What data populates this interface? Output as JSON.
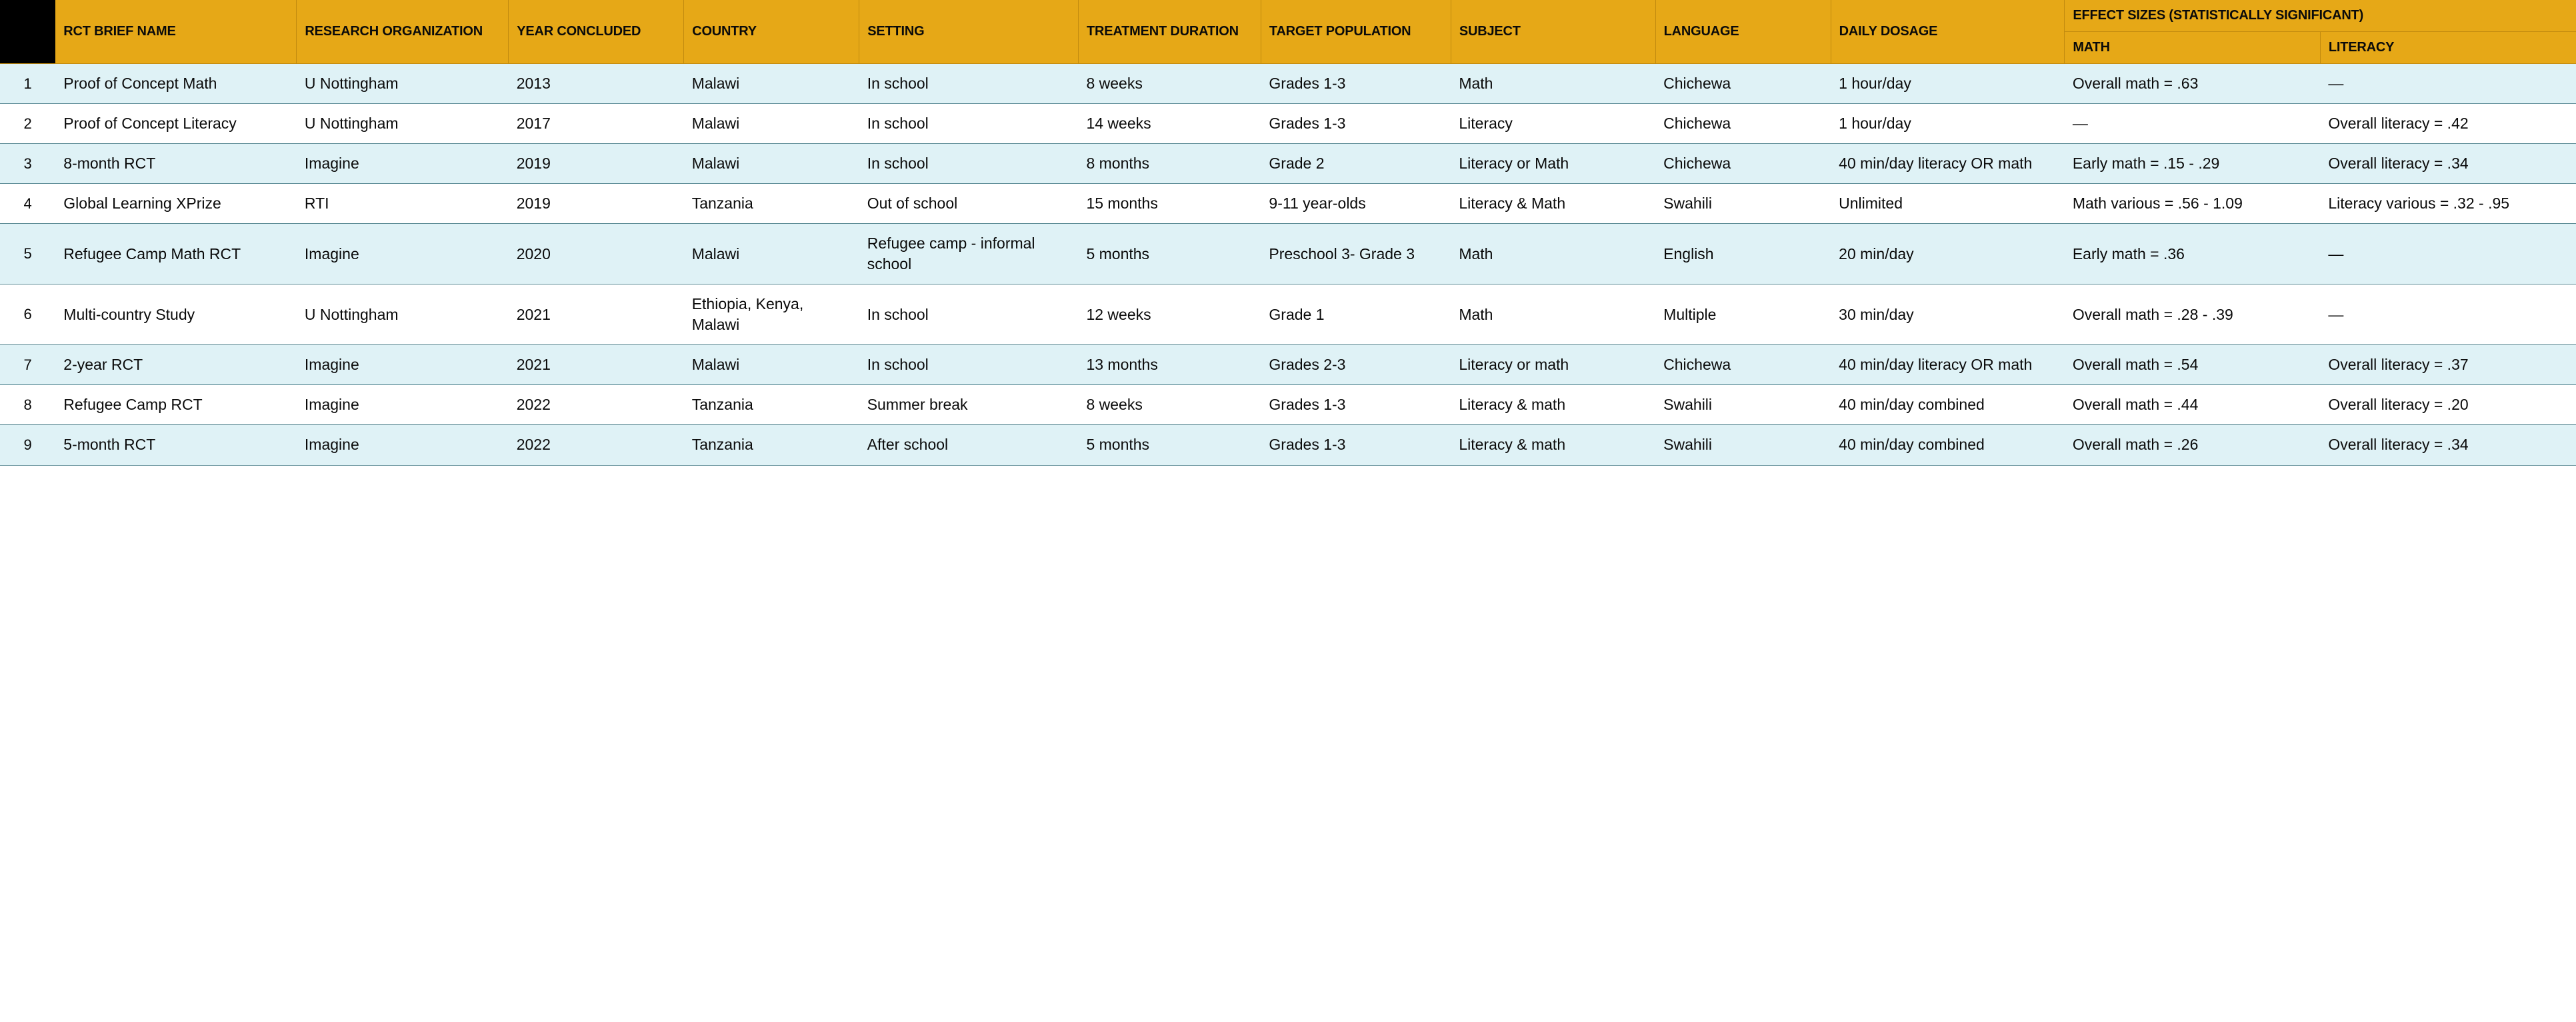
{
  "table": {
    "header_bg": "#e6a817",
    "header_border": "#c28b0f",
    "row_odd_bg": "#dff2f6",
    "row_even_bg": "#ffffff",
    "row_border": "#5a8a94",
    "idx_header_bg": "#000000",
    "text_color": "#0a0a0a",
    "font_size_header": 20,
    "font_size_body": 23,
    "columns": [
      {
        "key": "idx",
        "label": "",
        "width": 38
      },
      {
        "key": "name",
        "label": "RCT BRIEF NAME",
        "width": 165
      },
      {
        "key": "org",
        "label": "RESEARCH ORGANIZATION",
        "width": 145
      },
      {
        "key": "year",
        "label": "YEAR CONCLUDED",
        "width": 120
      },
      {
        "key": "country",
        "label": "COUNTRY",
        "width": 120
      },
      {
        "key": "setting",
        "label": "SETTING",
        "width": 150
      },
      {
        "key": "duration",
        "label": "TREATMENT DURATION",
        "width": 125
      },
      {
        "key": "population",
        "label": "TARGET POPULATION",
        "width": 130
      },
      {
        "key": "subject",
        "label": "SUBJECT",
        "width": 140
      },
      {
        "key": "language",
        "label": "LANGUAGE",
        "width": 120
      },
      {
        "key": "dosage",
        "label": "DAILY DOSAGE",
        "width": 160
      }
    ],
    "effect_group_label": "EFFECT SIZES (STATISTICALLY SIGNIFICANT)",
    "effect_columns": [
      {
        "key": "math",
        "label": "MATH",
        "width": 175
      },
      {
        "key": "literacy",
        "label": "LITERACY",
        "width": 175
      }
    ],
    "rows": [
      {
        "idx": "1",
        "name": "Proof of Concept Math",
        "org": "U Nottingham",
        "year": "2013",
        "country": "Malawi",
        "setting": "In school",
        "duration": "8 weeks",
        "population": "Grades 1-3",
        "subject": "Math",
        "language": "Chichewa",
        "dosage": "1 hour/day",
        "math": "Overall math = .63",
        "literacy": "—"
      },
      {
        "idx": "2",
        "name": "Proof of Concept Literacy",
        "org": "U Nottingham",
        "year": "2017",
        "country": "Malawi",
        "setting": "In school",
        "duration": "14 weeks",
        "population": "Grades 1-3",
        "subject": "Literacy",
        "language": "Chichewa",
        "dosage": "1 hour/day",
        "math": "—",
        "literacy": "Overall literacy = .42"
      },
      {
        "idx": "3",
        "name": "8-month RCT",
        "org": "Imagine",
        "year": "2019",
        "country": "Malawi",
        "setting": "In school",
        "duration": "8 months",
        "population": "Grade 2",
        "subject": "Literacy or Math",
        "language": "Chichewa",
        "dosage": "40 min/day literacy OR math",
        "math": "Early math = .15 - .29",
        "literacy": "Overall literacy = .34"
      },
      {
        "idx": "4",
        "name": "Global Learning XPrize",
        "org": "RTI",
        "year": "2019",
        "country": "Tanzania",
        "setting": "Out of school",
        "duration": "15 months",
        "population": "9-11 year-olds",
        "subject": "Literacy & Math",
        "language": "Swahili",
        "dosage": "Unlimited",
        "math": "Math various = .56 - 1.09",
        "literacy": "Literacy various = .32 - .95"
      },
      {
        "idx": "5",
        "name": "Refugee Camp Math RCT",
        "org": "Imagine",
        "year": "2020",
        "country": "Malawi",
        "setting": "Refugee camp - informal school",
        "duration": "5 months",
        "population": "Preschool 3- Grade 3",
        "subject": "Math",
        "language": "English",
        "dosage": "20 min/day",
        "math": "Early math = .36",
        "literacy": "—"
      },
      {
        "idx": "6",
        "name": "Multi-country Study",
        "org": "U Nottingham",
        "year": "2021",
        "country": "Ethiopia, Kenya, Malawi",
        "setting": "In school",
        "duration": "12 weeks",
        "population": "Grade 1",
        "subject": "Math",
        "language": "Multiple",
        "dosage": "30 min/day",
        "math": "Overall math = .28 - .39",
        "literacy": "—"
      },
      {
        "idx": "7",
        "name": "2-year RCT",
        "org": "Imagine",
        "year": "2021",
        "country": "Malawi",
        "setting": "In school",
        "duration": "13 months",
        "population": "Grades 2-3",
        "subject": "Literacy or math",
        "language": "Chichewa",
        "dosage": "40 min/day literacy OR math",
        "math": "Overall math = .54",
        "literacy": "Overall literacy = .37"
      },
      {
        "idx": "8",
        "name": "Refugee Camp RCT",
        "org": "Imagine",
        "year": "2022",
        "country": "Tanzania",
        "setting": "Summer break",
        "duration": "8 weeks",
        "population": "Grades 1-3",
        "subject": "Literacy & math",
        "language": "Swahili",
        "dosage": "40 min/day combined",
        "math": "Overall math = .44",
        "literacy": "Overall literacy = .20"
      },
      {
        "idx": "9",
        "name": "5-month RCT",
        "org": "Imagine",
        "year": "2022",
        "country": "Tanzania",
        "setting": "After school",
        "duration": "5 months",
        "population": "Grades 1-3",
        "subject": "Literacy & math",
        "language": "Swahili",
        "dosage": "40 min/day combined",
        "math": "Overall math = .26",
        "literacy": "Overall literacy = .34"
      }
    ]
  }
}
